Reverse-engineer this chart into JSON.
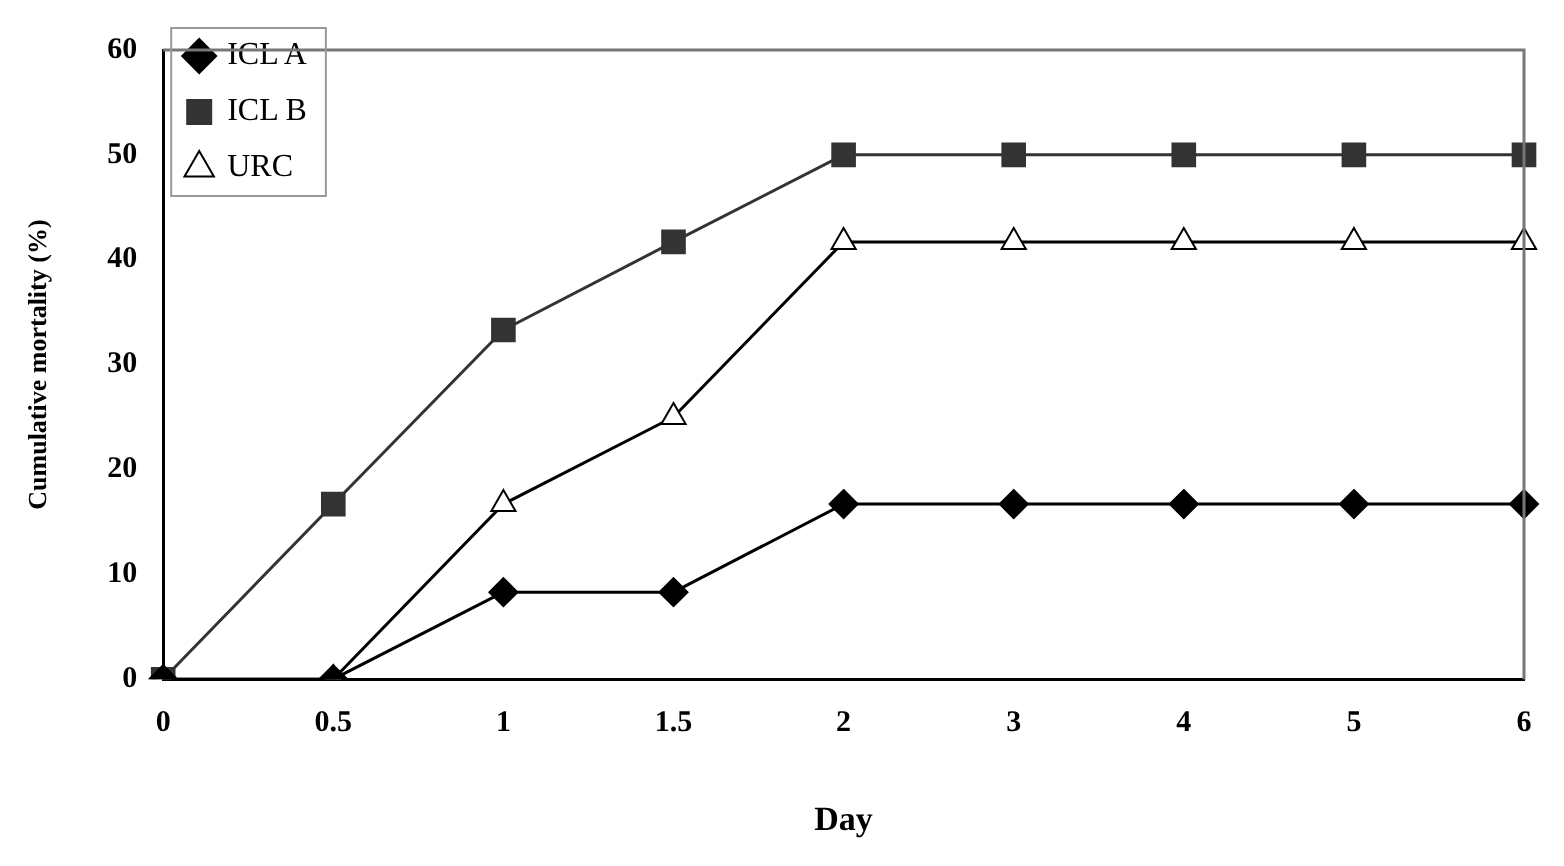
{
  "chart_data": {
    "type": "line",
    "xlabel": "Day",
    "ylabel": "Cumulative mortality (%)",
    "categories": [
      "0",
      "0.5",
      "1",
      "1.5",
      "2",
      "3",
      "4",
      "5",
      "6"
    ],
    "series": [
      {
        "name": "ICL A",
        "color": "#000000",
        "marker": "diamond",
        "values": [
          0,
          0,
          8.3,
          8.3,
          16.7,
          16.7,
          16.7,
          16.7,
          16.7
        ]
      },
      {
        "name": "ICL B",
        "color": "#333333",
        "marker": "square",
        "values": [
          0,
          16.7,
          33.3,
          41.7,
          50,
          50,
          50,
          50,
          50
        ]
      },
      {
        "name": "URC",
        "color": "#000000",
        "marker": "triangle",
        "values": [
          0,
          0,
          16.7,
          25,
          41.7,
          41.7,
          41.7,
          41.7,
          41.7
        ]
      }
    ],
    "ylim": [
      0,
      60
    ],
    "yticks": [
      0,
      10,
      20,
      30,
      40,
      50,
      60
    ],
    "grid": false,
    "legend": "top left"
  }
}
